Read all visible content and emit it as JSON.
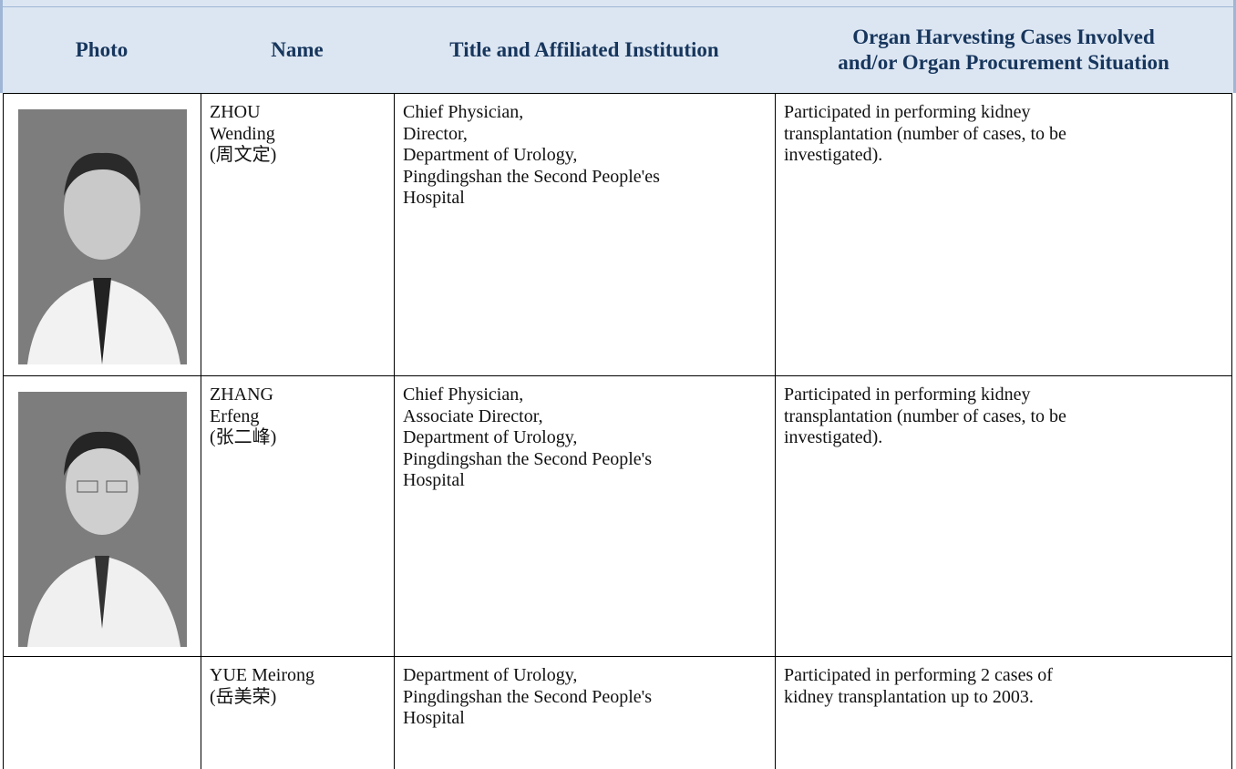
{
  "table": {
    "header": [
      "Photo",
      "Name",
      "Title and Affiliated Institution",
      [
        "Organ Harvesting Cases Involved",
        "and/or Organ Procurement Situation"
      ]
    ],
    "rows": [
      {
        "name": [
          "ZHOU",
          "Wending",
          "(周文定)"
        ],
        "title": [
          "Chief Physician,",
          "Director,",
          "Department of Urology,",
          "Pingdingshan the Second People'es",
          "Hospital"
        ],
        "cases": [
          "Participated in performing kidney",
          "transplantation (number of cases, to be",
          "investigated)."
        ]
      },
      {
        "name": [
          "ZHANG",
          "Erfeng",
          "(张二峰)"
        ],
        "title": [
          "Chief Physician,",
          "Associate Director,",
          "Department of Urology,",
          "Pingdingshan the Second People's",
          "Hospital"
        ],
        "cases": [
          "Participated in performing kidney",
          "transplantation (number of cases, to be",
          "investigated)."
        ]
      },
      {
        "name": [
          "YUE Meirong",
          "(岳美荣)"
        ],
        "title": [
          "Department of Urology,",
          "Pingdingshan the Second People's",
          "Hospital"
        ],
        "cases": [
          "Participated in performing 2 cases of",
          "kidney transplantation up to 2003."
        ]
      }
    ]
  }
}
